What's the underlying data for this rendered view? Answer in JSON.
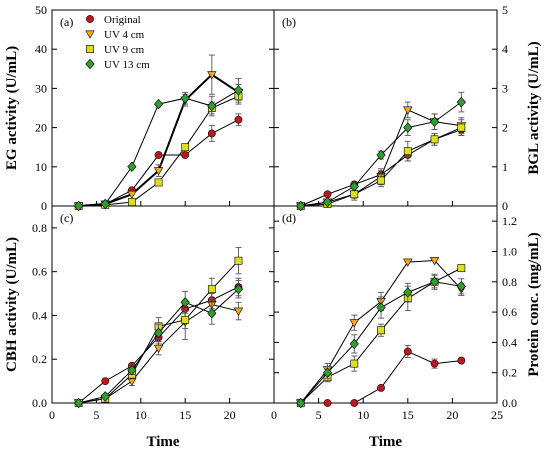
{
  "colors": {
    "original": "#c0161e",
    "uv4": "#f5a623",
    "uv9": "#dede1e",
    "uv13": "#2e9e2e"
  },
  "chart_data": [
    {
      "type": "line",
      "panel_label": "(a)",
      "ylabel": "EG activity (U/mL)",
      "y_axis_side": "left",
      "x": [
        3,
        6,
        9,
        12,
        15,
        18,
        21
      ],
      "xlim": [
        0,
        25
      ],
      "ylim": [
        0,
        50
      ],
      "yticks": [
        0,
        10,
        20,
        30,
        40,
        50
      ],
      "legend_placement": "top-left",
      "series": [
        {
          "name": "Original",
          "marker": "circle",
          "color_key": "original",
          "values": [
            0,
            0.5,
            4,
            13,
            13,
            18.5,
            22
          ],
          "errors": [
            0,
            0,
            0,
            0,
            0,
            2,
            1.5
          ]
        },
        {
          "name": "UV 4 cm",
          "marker": "triangle-down",
          "color_key": "uv4",
          "values": [
            0,
            0.5,
            3,
            9,
            27,
            33.5,
            29
          ],
          "errors": [
            0,
            0,
            0,
            1.5,
            1.5,
            5,
            2
          ]
        },
        {
          "name": "UV 9 cm",
          "marker": "square",
          "color_key": "uv9",
          "values": [
            0,
            0.3,
            1,
            6,
            15,
            25,
            28
          ],
          "errors": [
            0,
            0,
            0,
            0,
            0,
            1.5,
            2
          ]
        },
        {
          "name": "UV 13 cm",
          "marker": "diamond",
          "color_key": "uv13",
          "values": [
            0,
            0.5,
            10,
            26,
            27.5,
            25.5,
            29.5
          ],
          "errors": [
            0,
            0,
            0,
            0,
            1.5,
            2.5,
            3
          ]
        }
      ]
    },
    {
      "type": "line",
      "panel_label": "(b)",
      "ylabel": "BGL activity (U/mL)",
      "y_axis_side": "right",
      "x": [
        3,
        6,
        9,
        12,
        15,
        18,
        21
      ],
      "xlim": [
        0,
        25
      ],
      "ylim": [
        0,
        5
      ],
      "yticks": [
        0,
        1,
        2,
        3,
        4,
        5
      ],
      "series": [
        {
          "name": "Original",
          "marker": "circle",
          "color_key": "original",
          "values": [
            0,
            0.3,
            0.55,
            0.8,
            1.3,
            1.7,
            1.95
          ],
          "errors": [
            0,
            0,
            0,
            0.1,
            0.15,
            0.15,
            0.15
          ]
        },
        {
          "name": "UV 4 cm",
          "marker": "triangle-down",
          "color_key": "uv4",
          "values": [
            0,
            0.1,
            0.3,
            0.75,
            2.45,
            2.15,
            2.05
          ],
          "errors": [
            0,
            0,
            0.15,
            0.2,
            0.2,
            0.2,
            0.2
          ]
        },
        {
          "name": "UV 9 cm",
          "marker": "square",
          "color_key": "uv9",
          "values": [
            0,
            0.05,
            0.3,
            0.65,
            1.4,
            1.7,
            2.0
          ],
          "errors": [
            0,
            0,
            0.1,
            0.15,
            0.25,
            0.15,
            0.2
          ]
        },
        {
          "name": "UV 13 cm",
          "marker": "diamond",
          "color_key": "uv13",
          "values": [
            0,
            0.1,
            0.5,
            1.3,
            2.0,
            2.15,
            2.65
          ],
          "errors": [
            0,
            0,
            0.1,
            0.1,
            0.2,
            0.2,
            0.25
          ]
        }
      ]
    },
    {
      "type": "line",
      "panel_label": "(c)",
      "ylabel": "CBH activity (U/mL)",
      "y_axis_side": "left",
      "xlabel": "Time",
      "x": [
        3,
        6,
        9,
        12,
        15,
        18,
        21
      ],
      "xlim": [
        0,
        25
      ],
      "xticks": [
        0,
        5,
        10,
        15,
        20
      ],
      "ylim": [
        0,
        0.9
      ],
      "yticks": [
        0.0,
        0.2,
        0.4,
        0.6,
        0.8
      ],
      "series": [
        {
          "name": "Original",
          "marker": "circle",
          "color_key": "original",
          "values": [
            0,
            0.1,
            0.17,
            0.3,
            0.43,
            0.47,
            0.53
          ],
          "errors": [
            0,
            0,
            0,
            0.03,
            0.04,
            0.04,
            0.04
          ]
        },
        {
          "name": "UV 4 cm",
          "marker": "triangle-down",
          "color_key": "uv4",
          "values": [
            0,
            0.02,
            0.1,
            0.25,
            0.37,
            0.45,
            0.42
          ],
          "errors": [
            0,
            0,
            0.02,
            0.03,
            0.08,
            0.05,
            0.04
          ]
        },
        {
          "name": "UV 9 cm",
          "marker": "square",
          "color_key": "uv9",
          "values": [
            0,
            0.02,
            0.13,
            0.35,
            0.38,
            0.52,
            0.65
          ],
          "errors": [
            0,
            0,
            0.02,
            0.04,
            0.04,
            0.05,
            0.06
          ]
        },
        {
          "name": "UV 13 cm",
          "marker": "diamond",
          "color_key": "uv13",
          "values": [
            0,
            0.03,
            0.15,
            0.32,
            0.46,
            0.41,
            0.52
          ],
          "errors": [
            0,
            0,
            0.02,
            0.04,
            0.05,
            0.05,
            0.04
          ]
        }
      ]
    },
    {
      "type": "line",
      "panel_label": "(d)",
      "ylabel": "Protein conc. (mg/mL)",
      "y_axis_side": "right",
      "xlabel": "Time",
      "x": [
        3,
        6,
        9,
        12,
        15,
        18,
        21
      ],
      "xlim": [
        0,
        25
      ],
      "xticks": [
        0,
        5,
        10,
        15,
        20,
        25
      ],
      "ylim": [
        0,
        1.3
      ],
      "yticks": [
        0.0,
        0.2,
        0.4,
        0.6,
        0.8,
        1.0,
        1.2
      ],
      "series": [
        {
          "name": "Original",
          "marker": "circle",
          "color_key": "original",
          "values": [
            0,
            0,
            0,
            0.1,
            0.34,
            0.26,
            0.28
          ],
          "errors": [
            0,
            0,
            0,
            0,
            0.04,
            0.03,
            0
          ]
        },
        {
          "name": "UV 4 cm",
          "marker": "triangle-down",
          "color_key": "uv4",
          "values": [
            0,
            0.22,
            0.53,
            0.67,
            0.93,
            0.94,
            0.75
          ],
          "errors": [
            0,
            0.04,
            0.05,
            0.06,
            0,
            0,
            0.04
          ]
        },
        {
          "name": "UV 9 cm",
          "marker": "square",
          "color_key": "uv9",
          "values": [
            0,
            0.17,
            0.26,
            0.48,
            0.69,
            0.8,
            0.89
          ],
          "errors": [
            0,
            0.03,
            0.05,
            0.04,
            0.08,
            0.04,
            0
          ]
        },
        {
          "name": "UV 13 cm",
          "marker": "diamond",
          "color_key": "uv13",
          "values": [
            0,
            0.2,
            0.39,
            0.63,
            0.73,
            0.8,
            0.77
          ],
          "errors": [
            0,
            0.04,
            0.06,
            0.07,
            0.06,
            0.05,
            0.05
          ]
        }
      ]
    }
  ]
}
